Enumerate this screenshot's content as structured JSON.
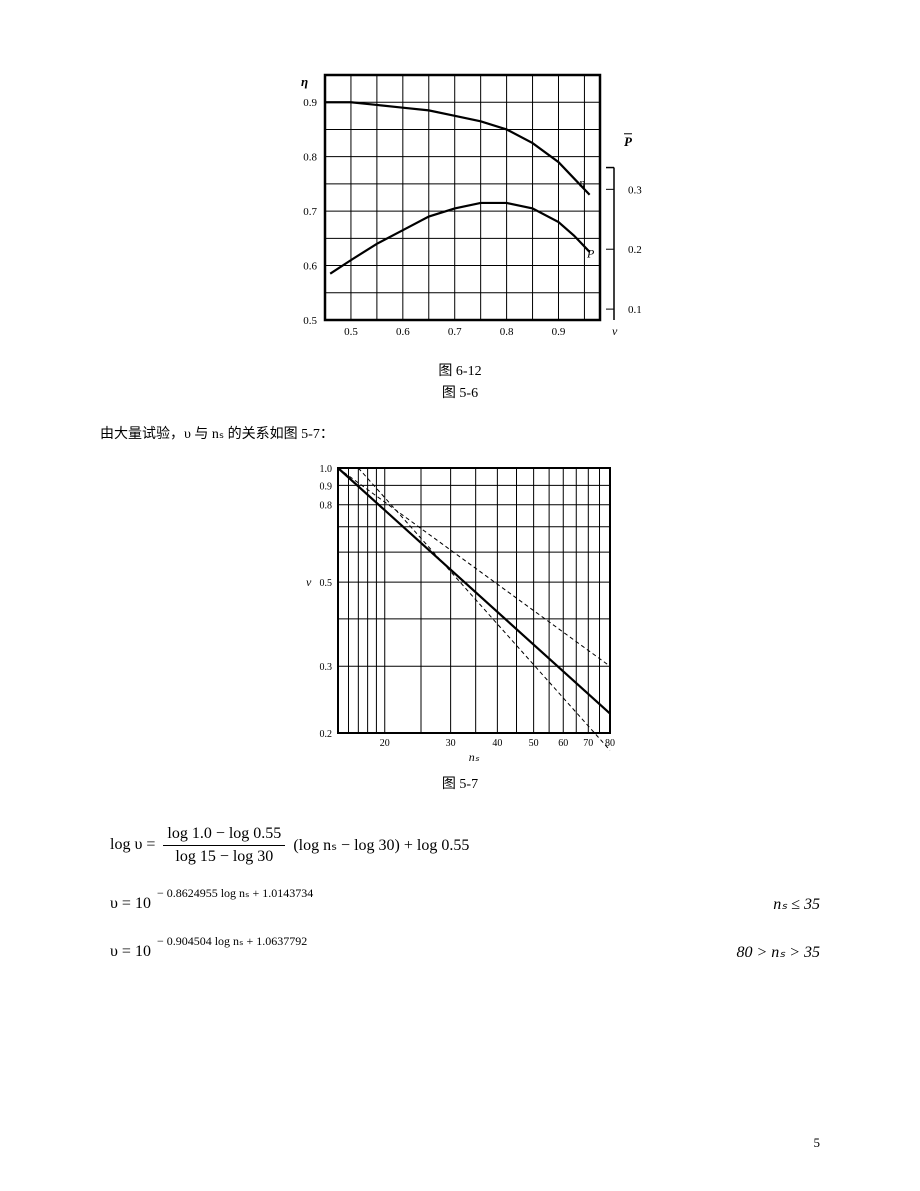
{
  "figure1": {
    "type": "line",
    "caption_top": "图  6-12",
    "caption_bottom": "图 5-6",
    "y1_label": "η",
    "y2_label": "P",
    "x_label": "v",
    "series_eta_label": "η",
    "series_p_label": "P",
    "x_ticks": [
      "0.5",
      "0.6",
      "0.7",
      "0.8",
      "0.9"
    ],
    "y1_ticks": [
      "0.5",
      "0.6",
      "0.7",
      "0.8",
      "0.9"
    ],
    "y2_ticks": [
      "0.1",
      "0.2",
      "0.3"
    ],
    "xlim": [
      0.45,
      0.98
    ],
    "y1_lim": [
      0.5,
      0.95
    ],
    "y2_lim": [
      0.05,
      0.35
    ],
    "grid_step_x": 0.05,
    "grid_step_y": 0.05,
    "eta_curve": [
      [
        0.45,
        0.9
      ],
      [
        0.5,
        0.9
      ],
      [
        0.55,
        0.895
      ],
      [
        0.6,
        0.89
      ],
      [
        0.65,
        0.885
      ],
      [
        0.7,
        0.875
      ],
      [
        0.75,
        0.865
      ],
      [
        0.8,
        0.85
      ],
      [
        0.85,
        0.825
      ],
      [
        0.9,
        0.79
      ],
      [
        0.93,
        0.76
      ],
      [
        0.96,
        0.73
      ]
    ],
    "p_curve": [
      [
        0.46,
        0.585
      ],
      [
        0.5,
        0.61
      ],
      [
        0.55,
        0.64
      ],
      [
        0.6,
        0.665
      ],
      [
        0.65,
        0.69
      ],
      [
        0.7,
        0.705
      ],
      [
        0.75,
        0.715
      ],
      [
        0.8,
        0.715
      ],
      [
        0.85,
        0.705
      ],
      [
        0.9,
        0.68
      ],
      [
        0.93,
        0.655
      ],
      [
        0.96,
        0.625
      ]
    ],
    "line_color": "#000000",
    "grid_color": "#000000",
    "background_color": "#ffffff",
    "line_width_grid": 1,
    "line_width_curve": 2.2,
    "line_width_outer": 2.5,
    "tick_fontsize": 11
  },
  "intertext": "由大量试验，υ 与 nₛ 的关系如图 5-7：",
  "figure2": {
    "type": "line-loglog",
    "caption": "图 5-7",
    "x_label": "nₛ",
    "y_label": "v",
    "x_ticks": [
      "20",
      "30",
      "40",
      "50",
      "60",
      "70",
      "80"
    ],
    "y_ticks": [
      "0.2",
      "0.3",
      "0.5",
      "0.8",
      "0.9",
      "1.0"
    ],
    "y_minor_ticks": [
      "0.4",
      "0.6",
      "0.7"
    ],
    "xlim_log": [
      15,
      80
    ],
    "ylim_log": [
      0.2,
      1.0
    ],
    "main_line": [
      [
        15,
        1.0
      ],
      [
        80,
        0.225
      ]
    ],
    "dashed_upper": [
      [
        15,
        1.0
      ],
      [
        80,
        0.3
      ]
    ],
    "dashed_lower": [
      [
        17,
        1.0
      ],
      [
        80,
        0.18
      ]
    ],
    "line_color": "#000000",
    "grid_color": "#000000",
    "dash_pattern": "4,3",
    "line_width_grid": 1,
    "line_width_main": 2.2,
    "line_width_dashed": 1,
    "background_color": "#ffffff",
    "tick_fontsize": 10
  },
  "equations": {
    "eq1_lhs": "log υ =",
    "eq1_frac_num": "log 1.0 − log 0.55",
    "eq1_frac_den": "log 15 − log 30",
    "eq1_tail": "(log nₛ − log 30) + log 0.55",
    "eq2_lhs": "υ = 10",
    "eq2_exp": "− 0.8624955 log nₛ + 1.0143734",
    "eq2_cond": "nₛ ≤ 35",
    "eq3_lhs": "υ = 10",
    "eq3_exp": "− 0.904504 log nₛ + 1.0637792",
    "eq3_cond": "80 > nₛ > 35"
  },
  "page_number": "5"
}
